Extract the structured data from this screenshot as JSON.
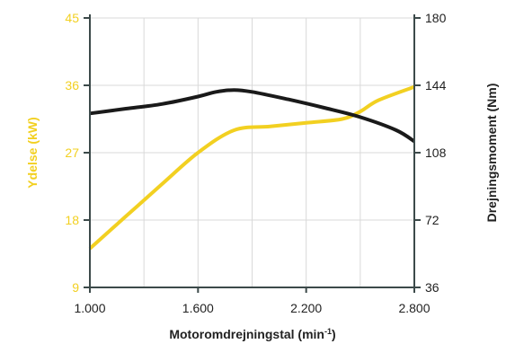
{
  "chart_data": {
    "type": "line",
    "xlabel_main": "Motoromdrejningstal (min",
    "xlabel_sup": "-1",
    "xlabel_tail": ")",
    "ylabel_left": "Ydelse (kW)",
    "ylabel_right": "Drejningsmoment (Nm)",
    "x_ticks": [
      "1.000",
      "1.600",
      "2.200",
      "2.800"
    ],
    "x_tick_values": [
      1000,
      1600,
      2200,
      2800
    ],
    "xlim": [
      1000,
      2800
    ],
    "left_ticks": [
      "45",
      "36",
      "27",
      "18",
      "9"
    ],
    "left_tick_values": [
      45,
      36,
      27,
      18,
      9
    ],
    "ylim_left": [
      9,
      45
    ],
    "right_ticks": [
      "180",
      "144",
      "108",
      "72",
      "36"
    ],
    "right_tick_values": [
      180,
      144,
      108,
      72,
      36
    ],
    "ylim_right": [
      36,
      180
    ],
    "grid": true,
    "colors": {
      "power": "#f2d021",
      "torque": "#1a1a1a",
      "axis": "#3c4a4a",
      "grid": "#d9d9d9"
    },
    "series": [
      {
        "axis": "left",
        "color": "#f2d021",
        "x": [
          1000,
          1200,
          1400,
          1600,
          1800,
          2000,
          2200,
          2400,
          2500,
          2600,
          2800
        ],
        "values": [
          14.2,
          18.5,
          22.8,
          27.0,
          30.0,
          30.5,
          31.0,
          31.5,
          32.5,
          34.0,
          35.8
        ]
      },
      {
        "axis": "right",
        "color": "#1a1a1a",
        "x": [
          1000,
          1200,
          1400,
          1600,
          1700,
          1800,
          1900,
          2100,
          2300,
          2500,
          2700,
          2800
        ],
        "values": [
          129,
          131.5,
          134,
          138,
          140.5,
          141.5,
          140.5,
          136.5,
          132,
          127,
          120,
          114
        ]
      }
    ]
  }
}
